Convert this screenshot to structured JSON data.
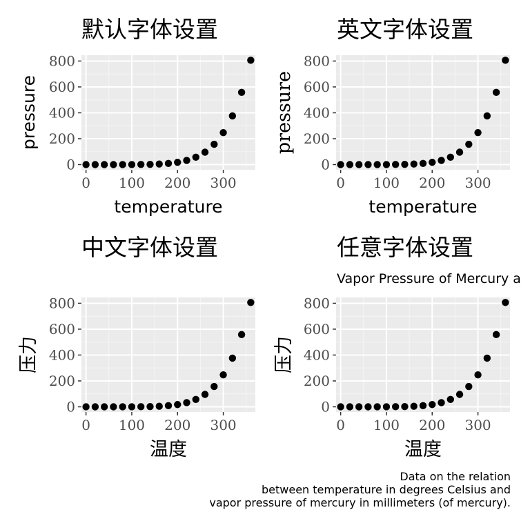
{
  "colors": {
    "panel_background": "#ebebeb",
    "grid_major": "#ffffff",
    "grid_minor": "#f5f5f5",
    "point": "#000000",
    "tick": "#333333",
    "tick_label": "#4d4d4d"
  },
  "caption": {
    "line1": "Data on the relation",
    "line2": "between temperature in degrees Celsius and",
    "line3": "vapor pressure of mercury in millimeters (of mercury)."
  },
  "chart_data": [
    {
      "type": "scatter",
      "title": "默认字体设置",
      "subtitle": "",
      "xlabel": "temperature",
      "ylabel": "pressure",
      "xlim": [
        -10,
        370
      ],
      "ylim": [
        -40,
        845
      ],
      "x_ticks": [
        0,
        100,
        200,
        300
      ],
      "y_ticks": [
        0,
        200,
        400,
        600,
        800
      ],
      "grid": true,
      "x": [
        0,
        20,
        40,
        60,
        80,
        100,
        120,
        140,
        160,
        180,
        200,
        220,
        240,
        260,
        280,
        300,
        320,
        340,
        360
      ],
      "y": [
        0.0002,
        0.0012,
        0.006,
        0.03,
        0.09,
        0.27,
        0.75,
        1.85,
        4.2,
        8.8,
        17.3,
        32.1,
        57,
        96,
        157,
        247,
        376,
        558,
        806
      ]
    },
    {
      "type": "scatter",
      "title": "英文字体设置",
      "subtitle": "",
      "xlabel": "temperature",
      "ylabel": "pressure",
      "xlim": [
        -10,
        370
      ],
      "ylim": [
        -40,
        845
      ],
      "x_ticks": [
        0,
        100,
        200,
        300
      ],
      "y_ticks": [
        0,
        200,
        400,
        600,
        800
      ],
      "grid": true,
      "x": [
        0,
        20,
        40,
        60,
        80,
        100,
        120,
        140,
        160,
        180,
        200,
        220,
        240,
        260,
        280,
        300,
        320,
        340,
        360
      ],
      "y": [
        0.0002,
        0.0012,
        0.006,
        0.03,
        0.09,
        0.27,
        0.75,
        1.85,
        4.2,
        8.8,
        17.3,
        32.1,
        57,
        96,
        157,
        247,
        376,
        558,
        806
      ]
    },
    {
      "type": "scatter",
      "title": "中文字体设置",
      "subtitle": "",
      "xlabel": "温度",
      "ylabel": "压力",
      "xlim": [
        -10,
        370
      ],
      "ylim": [
        -40,
        845
      ],
      "x_ticks": [
        0,
        100,
        200,
        300
      ],
      "y_ticks": [
        0,
        200,
        400,
        600,
        800
      ],
      "grid": true,
      "x": [
        0,
        20,
        40,
        60,
        80,
        100,
        120,
        140,
        160,
        180,
        200,
        220,
        240,
        260,
        280,
        300,
        320,
        340,
        360
      ],
      "y": [
        0.0002,
        0.0012,
        0.006,
        0.03,
        0.09,
        0.27,
        0.75,
        1.85,
        4.2,
        8.8,
        17.3,
        32.1,
        57,
        96,
        157,
        247,
        376,
        558,
        806
      ]
    },
    {
      "type": "scatter",
      "title": "任意字体设置",
      "subtitle": "Vapor Pressure of Mercury a",
      "xlabel": "温度",
      "ylabel": "压力",
      "xlim": [
        -10,
        370
      ],
      "ylim": [
        -40,
        845
      ],
      "x_ticks": [
        0,
        100,
        200,
        300
      ],
      "y_ticks": [
        0,
        200,
        400,
        600,
        800
      ],
      "grid": true,
      "x": [
        0,
        20,
        40,
        60,
        80,
        100,
        120,
        140,
        160,
        180,
        200,
        220,
        240,
        260,
        280,
        300,
        320,
        340,
        360
      ],
      "y": [
        0.0002,
        0.0012,
        0.006,
        0.03,
        0.09,
        0.27,
        0.75,
        1.85,
        4.2,
        8.8,
        17.3,
        32.1,
        57,
        96,
        157,
        247,
        376,
        558,
        806
      ]
    }
  ]
}
